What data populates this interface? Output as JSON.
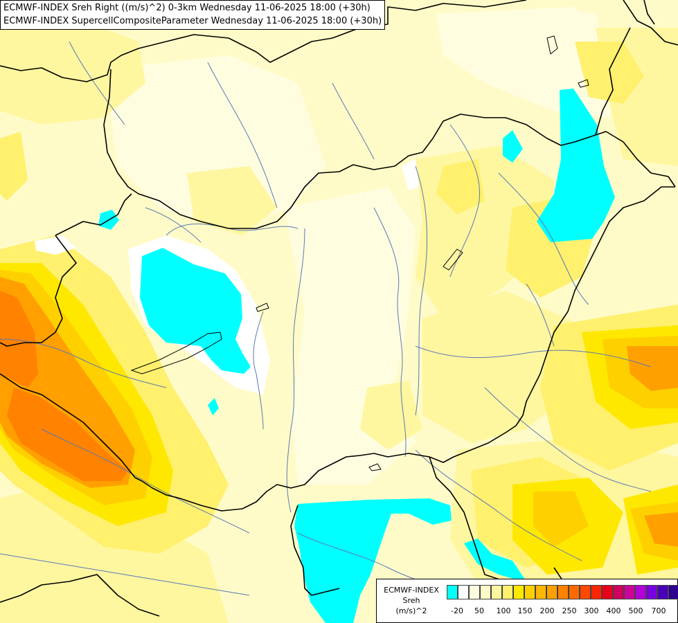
{
  "title": {
    "line1": "ECMWF-INDEX Sreh Right ((m/s)^2) 0-3km Wednesday 11-06-2025 18:00 (+30h)",
    "line2": "ECMWF-INDEX SupercellCompositeParameter Wednesday 11-06-2025 18:00 (+30h)"
  },
  "legend": {
    "title1": "ECMWF-INDEX",
    "title2": "Sreh",
    "unit": "(m/s)^2",
    "colors": [
      "#00ffff",
      "#ffffff",
      "#fffde0",
      "#fffbc8",
      "#fff6a0",
      "#fff06e",
      "#ffe800",
      "#ffd000",
      "#ffb800",
      "#ffa000",
      "#ff8200",
      "#ff6a00",
      "#ff4800",
      "#ff2400",
      "#e8001a",
      "#d00060",
      "#d0009a",
      "#b400d8",
      "#7800e0",
      "#4a00b8",
      "#2e0090",
      "#0a0a7a"
    ],
    "tick_labels": [
      "-20",
      "50",
      "100",
      "150",
      "200",
      "250",
      "300",
      "400",
      "500",
      "700"
    ]
  },
  "map": {
    "colors": {
      "background": "#fffbc8",
      "pale": "#fffde0",
      "light_yellow": "#fff6a0",
      "yellow": "#fff06e",
      "golden": "#ffe800",
      "amber": "#ffd000",
      "orange_light": "#ffb800",
      "orange": "#ffa000",
      "dark_orange": "#ff8200",
      "cyan": "#00ffff",
      "white": "#ffffff",
      "borders": "#000000",
      "rivers": "#5a78b4"
    }
  }
}
